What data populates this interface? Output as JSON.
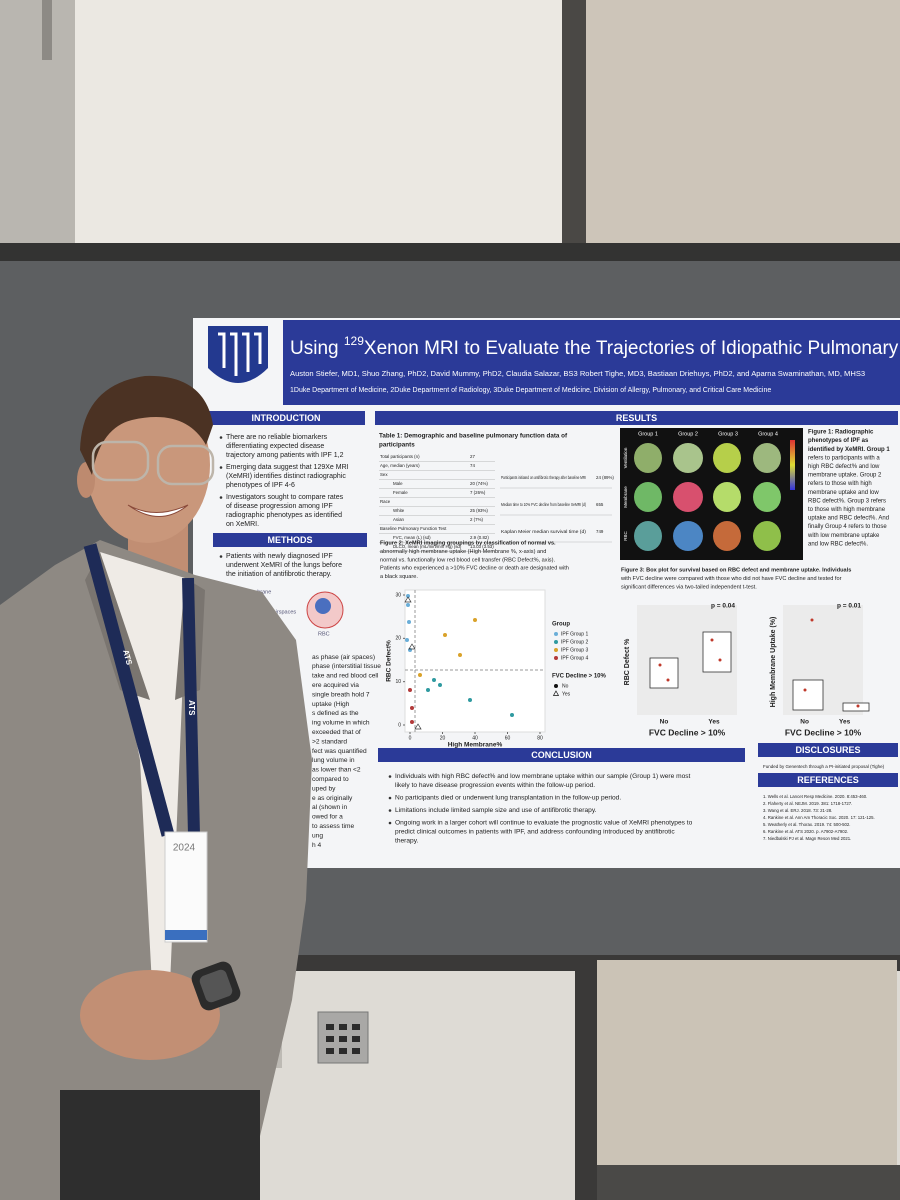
{
  "poster": {
    "title": {
      "pre": "Using",
      "sup": "129",
      "post": "Xenon MRI to Evaluate the Trajectories of Idiopathic Pulmonary Fibrosis"
    },
    "authors": "Auston Stiefer, MD1, Shuo Zhang, PhD2, David Mummy, PhD2, Claudia Salazar, BS3 Robert Tighe, MD3, Bastiaan Driehuys, PhD2, and Aparna Swaminathan, MD, MHS3",
    "affiliations": "1Duke Department of Medicine, 2Duke Department of Radiology, 3Duke Department of Medicine, Division of Allergy, Pulmonary, and Critical Care Medicine",
    "introduction": {
      "heading": "INTRODUCTION",
      "bullets": [
        [
          "There are no reliable biomarkers",
          "differentiating expected disease",
          "trajectory among patients with IPF 1,2"
        ],
        [
          "Emerging data suggest that 129Xe MRI",
          "(XeMRI) identifies distinct radiographic",
          "phenotypes of IPF 4-6"
        ],
        [
          "Investigators sought to compare rates",
          "of disease progression among IPF",
          "radiographic phenotypes as identified",
          "on XeMRI."
        ]
      ]
    },
    "methods": {
      "heading": "METHODS",
      "bullets": [
        [
          "Patients with newly diagnosed IPF",
          "underwent XeMRI of the lungs before",
          "the initiation of antifibrotic therapy."
        ]
      ],
      "diagram": [
        "Membrane",
        "Airspaces",
        "RBC"
      ],
      "fragments": [
        "as phase (air spaces)",
        "phase (interstitial tissue",
        "take and red blood cell",
        "ere acquired via",
        "single breath hold 7",
        "uptake (High",
        "s defined as the",
        "ing volume in which",
        "exceeded that of",
        ">2 standard",
        "fect was quantified",
        "lung volume in",
        "as lower than <2",
        "compared to",
        "uped by",
        "e as originally",
        "al (shown in",
        "owed for a",
        "to assess time",
        "ung",
        "h 4"
      ]
    },
    "results": {
      "heading": "RESULTS",
      "table": {
        "title": [
          "Table 1: Demographic and baseline pulmonary function data of",
          "participants"
        ],
        "left": [
          [
            "Total participants (n)",
            "27"
          ],
          [
            "Age, median (years)",
            "74"
          ],
          [
            "Sex"
          ],
          [
            "Male",
            "20 (74%)"
          ],
          [
            "Female",
            "7 (26%)"
          ],
          [
            "Race"
          ],
          [
            "White",
            "25 (93%)"
          ],
          [
            "Asian",
            "2 (7%)"
          ],
          [
            "Baseline Pulmonary Function Test"
          ],
          [
            "FVC, mean (L) (sd)",
            "2.9 (0.82)"
          ],
          [
            "DLCO, mean (mL/min/mm Hg) (sd)",
            "13.03 (3.53)"
          ]
        ],
        "right": [
          [
            "Participants initiated on antifibrotic therapy after baseline MRI",
            "24 (89%)"
          ],
          [
            "Median time to 10% FVC decline from baseline XeMRI (d)",
            "655"
          ],
          [
            "Kaplan Meier median survival time (d)",
            "749"
          ]
        ]
      },
      "figure1": {
        "groups": [
          "Group 1",
          "Group 2",
          "Group 3",
          "Group 4"
        ],
        "rows": [
          "Ventilation",
          "Membrane",
          "RBC"
        ],
        "caption": [
          "Figure 1: Radiographic",
          "phenotypes of IPF as",
          "identified by XeMRI. Group 1",
          "refers to participants with a",
          "high RBC defect% and low",
          "membrane uptake. Group 2",
          "refers to those with high",
          "membrane uptake and low",
          "RBC defect%. Group 3 refers",
          "to those with high membrane",
          "uptake and RBC defect%. And",
          "finally Group 4 refers to those",
          "with low membrane uptake",
          "and low RBC defect%."
        ]
      },
      "figure2": {
        "caption": [
          "Figure 2: XeMRI imaging groupings by classification of normal vs.",
          "abnormally high membrane uptake (High Membrane %, x-axis) and",
          "normal vs. functionally low red blood cell transfer (RBC Defect%, axis).",
          "Patients who experienced a >10% FVC decline or death are designated with",
          "a black square."
        ],
        "ylabel": "RBC Defect%",
        "xlabel": "High Membrane%",
        "xticks": [
          0,
          20,
          40,
          60,
          80
        ],
        "yticks": [
          0,
          10,
          20,
          30
        ],
        "legend_title": "Group",
        "groups": [
          {
            "name": "IPF Group 1",
            "color": "#6aaed8"
          },
          {
            "name": "IPF Group 2",
            "color": "#2f9aa0"
          },
          {
            "name": "IPF Group 3",
            "color": "#d9a22a"
          },
          {
            "name": "IPF Group 4",
            "color": "#b33a3a"
          }
        ],
        "legend2_title": "FVC Decline > 10%",
        "legend2": [
          "No",
          "Yes"
        ]
      },
      "figure3": {
        "caption": [
          "Figure 3: Box plot for survival based on RBC defect and membrane uptake. Individuals",
          "with FVC decline were compared with those who did not have FVC decline and tested for",
          "significant differences via two-tailed independent t-test."
        ],
        "plots": [
          {
            "ylabel": "RBC Defect %",
            "p": "p = 0.04",
            "categories": [
              "No",
              "Yes"
            ],
            "xlabel": "FVC Decline > 10%"
          },
          {
            "ylabel": "High Membrane Uptake (%)",
            "p": "p = 0.01",
            "categories": [
              "No",
              "Yes"
            ],
            "xlabel": "FVC Decline > 10%"
          }
        ]
      }
    },
    "conclusion": {
      "heading": "CONCLUSION",
      "bullets": [
        [
          "Individuals with high RBC defect% and low membrane uptake within our sample (Group 1) were most",
          "likely to have disease progression events within the follow-up period."
        ],
        [
          "No participants died or underwent lung transplantation in the follow-up period."
        ],
        [
          "Limitations include limited sample size and use of antifibrotic therapy."
        ],
        [
          "Ongoing work in a larger cohort will continue to evaluate the prognostic value of XeMRI phenotypes to",
          "predict clinical outcomes in patients with IPF, and address confounding introduced by antifibrotic",
          "therapy."
        ]
      ]
    },
    "disclosures": {
      "heading": "DISCLOSURES",
      "text": "Funded by Genentech through a PI-initiated proposal (Tighe)"
    },
    "references": {
      "heading": "REFERENCES",
      "items": [
        "1. Wells et al. Lancet Resp Medicine. 2020. 8:453-460.",
        "2. Flaherty et al. NEJM. 2019. 381: 1718-1727.",
        "3. Wang et al. ERJ. 2018. 73: 21-28.",
        "4. Rankine et al. Ann Am Thoracic Soc. 2020. 17: 121-125.",
        "5. Weatherly et al. Thorax. 2019. 74: 500-502.",
        "6. Rankine et al. ATS 2020. p. A7902-A7902.",
        "7. Niedbalski PJ et al. Magn Reson Med 2021."
      ]
    }
  },
  "scene": {
    "lanyard": "ATS",
    "badge": "2024"
  }
}
